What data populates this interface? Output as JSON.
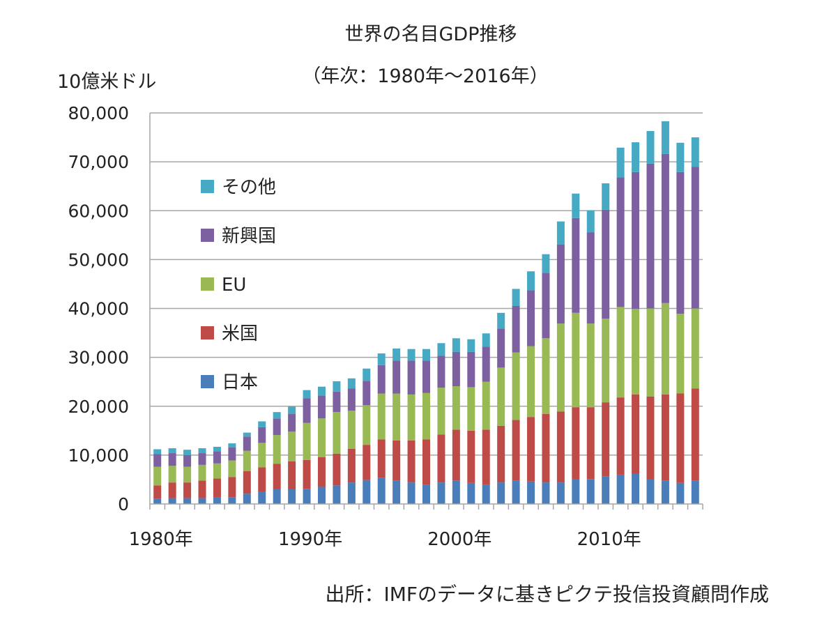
{
  "chart_data": {
    "type": "bar",
    "stacked": true,
    "title": "世界の名目GDP推移",
    "subtitle": "（年次：1980年～2016年）",
    "ylabel": "10億米ドル",
    "xlabel": "",
    "source": "出所：IMFのデータに基きピクテ投信投資顧問作成",
    "ylim": [
      0,
      80000
    ],
    "yticks": [
      "0",
      "10,000",
      "20,000",
      "30,000",
      "40,000",
      "50,000",
      "60,000",
      "70,000",
      "80,000"
    ],
    "xtick_labels": [
      {
        "year": 1980,
        "label": "1980年"
      },
      {
        "year": 1990,
        "label": "1990年"
      },
      {
        "year": 2000,
        "label": "2000年"
      },
      {
        "year": 2010,
        "label": "2010年"
      }
    ],
    "grid": true,
    "legend_position": "inside-left",
    "categories": [
      1980,
      1981,
      1982,
      1983,
      1984,
      1985,
      1986,
      1987,
      1988,
      1989,
      1990,
      1991,
      1992,
      1993,
      1994,
      1995,
      1996,
      1997,
      1998,
      1999,
      2000,
      2001,
      2002,
      2003,
      2004,
      2005,
      2006,
      2007,
      2008,
      2009,
      2010,
      2011,
      2012,
      2013,
      2014,
      2015,
      2016
    ],
    "series": [
      {
        "name": "日本",
        "color": "#4a7ebb",
        "values": [
          1100,
          1200,
          1200,
          1200,
          1300,
          1400,
          2100,
          2500,
          3000,
          3000,
          3100,
          3500,
          3800,
          4400,
          4900,
          5400,
          4800,
          4400,
          3900,
          4400,
          4800,
          4300,
          3900,
          4400,
          4800,
          4600,
          4400,
          4400,
          5000,
          5100,
          5600,
          6000,
          6200,
          5000,
          4800,
          4300,
          4800
        ]
      },
      {
        "name": "米国",
        "color": "#be4b48",
        "values": [
          2700,
          3200,
          3200,
          3600,
          3900,
          4100,
          4600,
          5000,
          5200,
          5700,
          5900,
          6100,
          6500,
          6900,
          7200,
          7800,
          8200,
          8600,
          9300,
          9800,
          10400,
          10700,
          11300,
          11600,
          12400,
          13200,
          14000,
          14500,
          14800,
          14700,
          15200,
          15800,
          16200,
          17000,
          17600,
          18300,
          18800
        ]
      },
      {
        "name": "EU",
        "color": "#98b954",
        "values": [
          3800,
          3400,
          3200,
          3200,
          3100,
          3400,
          4200,
          5000,
          5900,
          6100,
          7600,
          7900,
          8500,
          7800,
          8100,
          9400,
          9600,
          9400,
          9500,
          9600,
          8900,
          8900,
          9800,
          11900,
          13800,
          14500,
          15500,
          18000,
          19300,
          17100,
          17100,
          18500,
          17500,
          18000,
          18700,
          16300,
          16400
        ]
      },
      {
        "name": "新興国",
        "color": "#7d60a0",
        "values": [
          2600,
          2600,
          2400,
          2400,
          2500,
          2700,
          2900,
          3200,
          3400,
          3600,
          5000,
          4700,
          4200,
          4500,
          5000,
          5800,
          6700,
          6900,
          6600,
          6500,
          7000,
          7200,
          7200,
          8000,
          9500,
          11400,
          13400,
          16200,
          19400,
          18700,
          22300,
          26500,
          28000,
          29600,
          30500,
          29000,
          29000
        ]
      },
      {
        "name": "その他",
        "color": "#46aac5",
        "values": [
          1000,
          1000,
          1100,
          1000,
          900,
          800,
          800,
          1200,
          1300,
          1500,
          1700,
          1800,
          2100,
          2100,
          2500,
          2400,
          2500,
          2400,
          2400,
          2600,
          2800,
          2600,
          2700,
          3200,
          3500,
          3900,
          3800,
          4700,
          5000,
          4500,
          5400,
          6100,
          6100,
          6700,
          6700,
          6000,
          6000
        ]
      }
    ],
    "legend_order": [
      "その他",
      "新興国",
      "EU",
      "米国",
      "日本"
    ]
  }
}
